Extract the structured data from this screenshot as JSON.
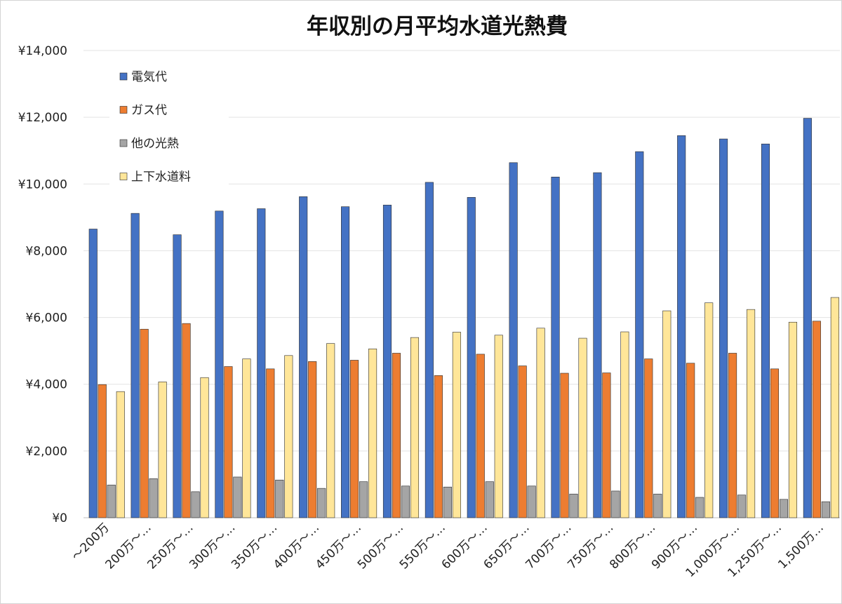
{
  "chart_data": {
    "type": "bar",
    "title": "年収別の月平均水道光熱費",
    "xlabel": "",
    "ylabel": "",
    "ylim": [
      0,
      14000
    ],
    "yticks": [
      "¥0",
      "¥2,000",
      "¥4,000",
      "¥6,000",
      "¥8,000",
      "¥10,000",
      "¥12,000",
      "¥14,000"
    ],
    "grid": true,
    "legend_position": "top-left",
    "categories": [
      "～200万",
      "200万～…",
      "250万～…",
      "300万～…",
      "350万～…",
      "400万～…",
      "450万～…",
      "500万～…",
      "550万～…",
      "600万～…",
      "650万～…",
      "700万～…",
      "750万～…",
      "800万～…",
      "900万～…",
      "1,000万～…",
      "1,250万～…",
      "1,500万…"
    ],
    "series": [
      {
        "name": "電気代",
        "color": "#4472c4",
        "values": [
          8650,
          9120,
          8480,
          9190,
          9260,
          9620,
          9320,
          9370,
          10050,
          9600,
          10640,
          10210,
          10340,
          10970,
          11450,
          11350,
          11200,
          11970
        ]
      },
      {
        "name": "ガス代",
        "color": "#ed7d31",
        "values": [
          3990,
          5650,
          5820,
          4530,
          4460,
          4680,
          4720,
          4930,
          4260,
          4900,
          4550,
          4330,
          4340,
          4760,
          4630,
          4930,
          4460,
          5890
        ]
      },
      {
        "name": "他の光熱",
        "color": "#a5a5a5",
        "values": [
          980,
          1170,
          780,
          1220,
          1130,
          880,
          1080,
          950,
          920,
          1080,
          950,
          710,
          800,
          710,
          610,
          680,
          550,
          480
        ]
      },
      {
        "name": "上下水道料",
        "color": "#ffe699",
        "values": [
          3780,
          4070,
          4200,
          4760,
          4860,
          5220,
          5060,
          5400,
          5560,
          5470,
          5680,
          5380,
          5570,
          6200,
          6440,
          6240,
          5860,
          6600
        ]
      }
    ]
  }
}
